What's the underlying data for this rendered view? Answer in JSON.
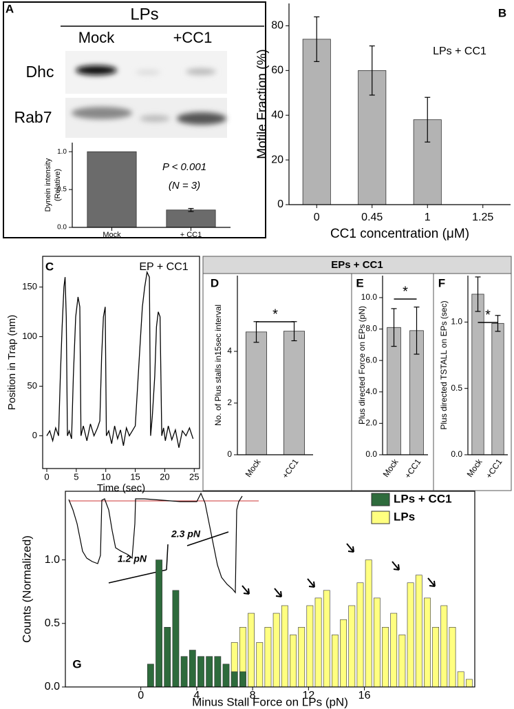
{
  "chart_data": [
    {
      "type": "bar",
      "panel": "A",
      "heading": "LPs",
      "blot_columns": [
        "Mock",
        "+CC1"
      ],
      "blot_rows": [
        "Dhc",
        "Rab7"
      ],
      "y_label": [
        "Dynein intensity",
        "(Relative)"
      ],
      "categories": [
        "Mock",
        "+ CC1"
      ],
      "values": [
        1.0,
        0.23
      ],
      "errors": [
        null,
        0.02
      ],
      "color": "#6b6b6b",
      "ylim": [
        0,
        1.12
      ],
      "yticks": [
        {
          "value": 0,
          "label": "0.0"
        },
        {
          "value": 0.5,
          "label": "0.5"
        },
        {
          "value": 1.0,
          "label": "1.0"
        }
      ],
      "annotations": [
        "P < 0.001",
        "(N = 3)"
      ]
    },
    {
      "type": "bar",
      "panel": "B",
      "y_label": "Motile Fraction (%)",
      "x_label": "CC1 concentration (μM)",
      "categories": [
        "0",
        "0.45",
        "1",
        "1.25"
      ],
      "values": [
        74,
        60,
        38,
        0
      ],
      "errors": [
        10,
        11,
        10,
        null
      ],
      "color": "#b3b3b3",
      "ylim": [
        0,
        90
      ],
      "yticks": [
        0,
        20,
        40,
        60,
        80
      ],
      "annotations": [
        "LPs + CC1"
      ]
    },
    {
      "type": "line",
      "panel": "C",
      "y_label": "Position in Trap (nm)",
      "x_label": "Time (sec)",
      "annotations": [
        "EP + CC1"
      ],
      "x": [
        0,
        0.5,
        1,
        1.5,
        2,
        2.3,
        2.6,
        2.9,
        3.1,
        3.3,
        3.5,
        3.8,
        4.2,
        4.5,
        4.9,
        5.3,
        5.6,
        5.8,
        6.2,
        6.8,
        7.4,
        8,
        8.6,
        9.0,
        9.3,
        9.6,
        9.9,
        10.1,
        10.5,
        11,
        11.5,
        12,
        12.5,
        13,
        13.5,
        14,
        14.5,
        15,
        15.4,
        15.8,
        16.2,
        16.6,
        17,
        17.4,
        17.6,
        17.9,
        18.3,
        18.6,
        18.9,
        19.2,
        19.5,
        19.8,
        20.1,
        20.6,
        21.2,
        21.8,
        22.4,
        23,
        23.6,
        24.2,
        24.8
      ],
      "values": [
        0,
        5,
        -5,
        8,
        0,
        60,
        110,
        150,
        160,
        120,
        0,
        5,
        -3,
        60,
        120,
        140,
        130,
        0,
        10,
        -5,
        12,
        0,
        8,
        15,
        80,
        120,
        130,
        0,
        5,
        -8,
        10,
        -3,
        6,
        -10,
        8,
        0,
        5,
        10,
        50,
        90,
        130,
        150,
        165,
        160,
        0,
        20,
        60,
        110,
        125,
        120,
        0,
        8,
        -5,
        10,
        -4,
        6,
        -12,
        5,
        0,
        8,
        -3
      ],
      "color": "#000000",
      "xlim": [
        -0.7,
        25.9
      ],
      "xticks": [
        0,
        5,
        10,
        15,
        20,
        25
      ],
      "ylim": [
        -33,
        181
      ],
      "yticks": [
        0,
        50,
        100,
        150
      ]
    },
    {
      "type": "bar",
      "panel": "D",
      "group_title": "EPs + CC1",
      "y_label": "No. of Plus stalls in15sec interval",
      "categories": [
        "Mock",
        "+CC1"
      ],
      "values": [
        4.75,
        4.78
      ],
      "errors": [
        0.4,
        0.37
      ],
      "color": "#b8b8b8",
      "ylim": [
        0,
        6.93
      ],
      "yticks": [
        0,
        2,
        4
      ],
      "significance": "*"
    },
    {
      "type": "bar",
      "panel": "E",
      "y_label": "Plus directed Force on EPs (pN)",
      "categories": [
        "Mock",
        "+CC1"
      ],
      "values": [
        8.1,
        7.9
      ],
      "errors": [
        1.2,
        1.5
      ],
      "color": "#b8b8b8",
      "ylim": [
        0,
        11.4
      ],
      "yticks": [
        {
          "value": 0,
          "label": "0.0"
        },
        {
          "value": 2,
          "label": "2.0"
        },
        {
          "value": 4,
          "label": "4.0"
        },
        {
          "value": 6,
          "label": "6.0"
        },
        {
          "value": 8,
          "label": "8.0"
        },
        {
          "value": 10,
          "label": "10.0"
        }
      ],
      "significance": "*"
    },
    {
      "type": "bar",
      "panel": "F",
      "y_label": "Plus directed TSTALL on EPs (sec)",
      "categories": [
        "Mock",
        "+CC1"
      ],
      "values": [
        1.21,
        0.99
      ],
      "errors": [
        0.13,
        0.06
      ],
      "color": "#b8b8b8",
      "ylim": [
        0,
        1.35
      ],
      "yticks": [
        {
          "value": 0,
          "label": "0.0"
        },
        {
          "value": 0.5,
          "label": "0.5"
        },
        {
          "value": 1.0,
          "label": "1.0"
        }
      ],
      "significance": "*"
    },
    {
      "type": "histogram",
      "panel": "G",
      "y_label": "Counts (Normalized)",
      "x_label": "Minus Stall Force on LPs (pN)",
      "annotations": [
        "1.2 pN",
        "2.3 pN"
      ],
      "legend": "upper right",
      "bins": [
        0.4,
        1.0,
        1.6,
        2.2,
        2.8,
        3.4,
        4.0,
        4.6,
        5.2,
        5.8,
        6.4,
        7.0,
        7.6,
        8.2,
        8.8,
        9.4,
        10.0,
        10.6,
        11.2,
        11.8,
        12.4,
        13.0,
        13.6,
        14.2,
        14.8,
        15.4,
        16.0,
        16.6,
        17.2,
        17.8,
        18.4,
        19.0,
        19.6,
        20.2,
        20.8,
        21.4,
        22.0,
        22.6,
        23.2,
        23.8
      ],
      "series": [
        {
          "name": "LPs",
          "color": "#ffff80",
          "values": [
            0,
            0,
            0,
            0,
            0,
            0,
            0,
            0,
            0,
            0,
            0.35,
            0.47,
            0.58,
            0.35,
            0.47,
            0.58,
            0.64,
            0.41,
            0.47,
            0.64,
            0.7,
            0.76,
            0.41,
            0.53,
            0.64,
            0.82,
            1.0,
            0.7,
            0.47,
            0.58,
            0.41,
            0.82,
            0.88,
            0.7,
            0.47,
            0.64,
            0.47,
            0.12,
            0.06
          ]
        },
        {
          "name": "LPs + CC1",
          "color": "#2e6b3c",
          "values": [
            0.18,
            1.0,
            0.47,
            0.76,
            0.24,
            0.29,
            0.24,
            0.24,
            0.24,
            0.18,
            0.12,
            0.12,
            0,
            0,
            0,
            0,
            0,
            0,
            0,
            0,
            0,
            0,
            0,
            0,
            0,
            0,
            0,
            0,
            0,
            0,
            0,
            0,
            0,
            0,
            0,
            0,
            0,
            0,
            0
          ]
        }
      ],
      "xlim": [
        -5.4,
        23.9
      ],
      "xticks": [
        0,
        4,
        8,
        12,
        16
      ],
      "ylim": [
        0,
        1.54
      ],
      "yticks": [
        {
          "value": 0,
          "label": "0.0"
        },
        {
          "value": 0.5,
          "label": "0.5"
        },
        {
          "value": 1.0,
          "label": "1.0"
        }
      ]
    }
  ]
}
